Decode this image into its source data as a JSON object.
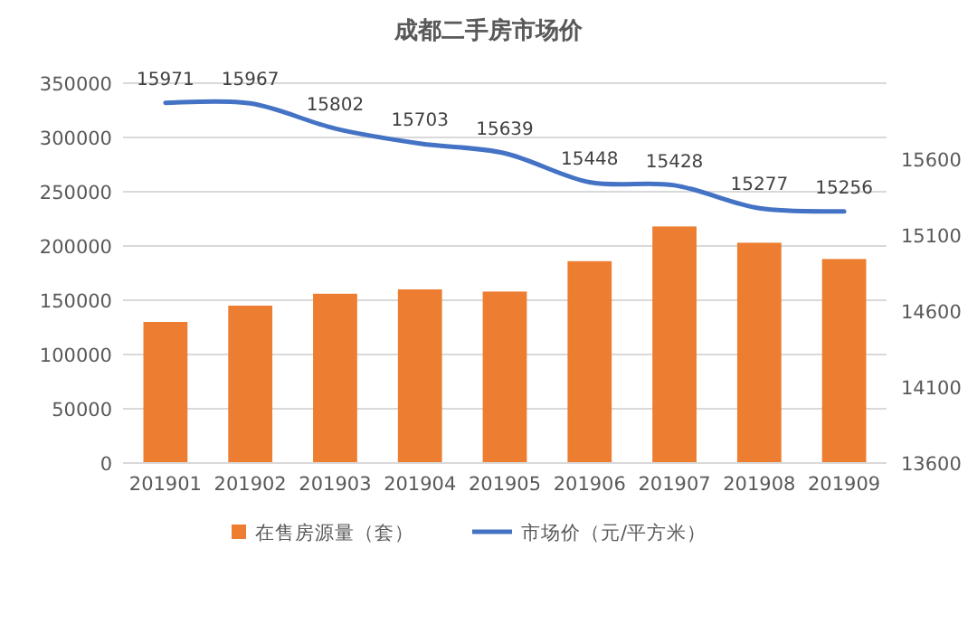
{
  "chart_data": {
    "type": "bar",
    "title": "成都二手房市场价",
    "categories": [
      "201901",
      "201902",
      "201903",
      "201904",
      "201905",
      "201906",
      "201907",
      "201908",
      "201909"
    ],
    "series": [
      {
        "name": "在售房源量（套）",
        "color": "#ed7d31",
        "values": [
          130000,
          145000,
          156000,
          160000,
          158000,
          186000,
          218000,
          203000,
          188000
        ]
      },
      {
        "name": "市场价（元/平方米）",
        "type": "line",
        "axis": "y2",
        "color": "#4472c4",
        "values": [
          15971,
          15967,
          15802,
          15703,
          15639,
          15448,
          15428,
          15277,
          15256
        ],
        "value_labels": [
          "15971",
          "15967",
          "15802",
          "15703",
          "15639",
          "15448",
          "15428",
          "15277",
          "15256"
        ]
      }
    ],
    "ylim": [
      0,
      350000
    ],
    "yticks": [
      0,
      50000,
      100000,
      150000,
      200000,
      250000,
      300000,
      350000
    ],
    "y2lim": [
      13600,
      16100
    ],
    "y2ticks": [
      13600,
      14100,
      14600,
      15100,
      15600
    ],
    "grid": "y",
    "legend": "bottom"
  }
}
